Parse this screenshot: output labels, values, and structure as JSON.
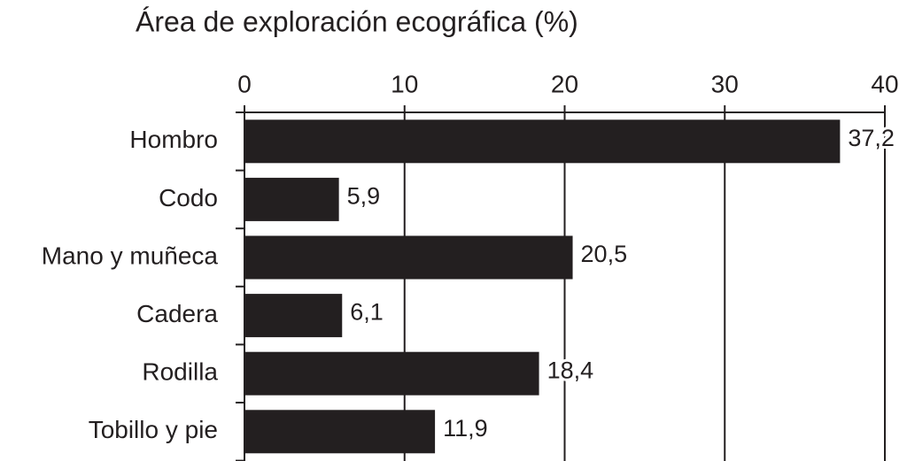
{
  "chart_data": {
    "type": "bar",
    "orientation": "horizontal",
    "title": "Área de exploración ecográfica (%)",
    "categories": [
      "Hombro",
      "Codo",
      "Mano y muñeca",
      "Cadera",
      "Rodilla",
      "Tobillo y pie"
    ],
    "values": [
      37.2,
      5.9,
      20.5,
      6.1,
      18.4,
      11.9
    ],
    "value_labels": [
      "37,2",
      "5,9",
      "20,5",
      "6,1",
      "18,4",
      "11,9"
    ],
    "color": "#231f20",
    "xlim": [
      0,
      40
    ],
    "xticks": [
      0,
      10,
      20,
      30,
      40
    ],
    "grid": true,
    "axis_position": "top"
  }
}
